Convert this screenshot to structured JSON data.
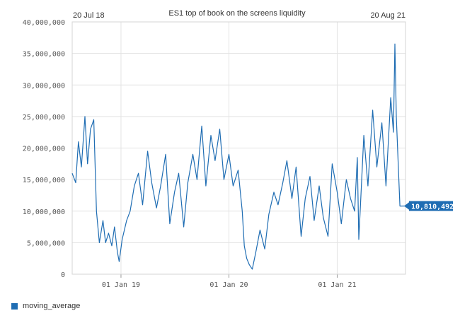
{
  "chart_data": {
    "type": "line",
    "title": "ES1 top of book on the screens liquidity",
    "start_label": "20 Jul 18",
    "end_label": "20 Aug 21",
    "xlabel": "",
    "ylabel": "",
    "x_tick_labels": [
      "01 Jan 19",
      "01 Jan 20",
      "01 Jan 21"
    ],
    "y_tick_labels": [
      "0",
      "5,000,000",
      "10,000,000",
      "15,000,000",
      "20,000,000",
      "25,000,000",
      "30,000,000",
      "35,000,000",
      "40,000,000"
    ],
    "xlim": [
      "2018-07-20",
      "2021-08-20"
    ],
    "ylim": [
      0,
      40000000
    ],
    "grid": true,
    "legend_position": "bottom-left",
    "last_value_label": "10,810,492",
    "series": [
      {
        "name": "moving_average",
        "color": "#1f6db3",
        "x": [
          "2018-07-20",
          "2018-08-01",
          "2018-08-10",
          "2018-08-20",
          "2018-09-01",
          "2018-09-10",
          "2018-09-20",
          "2018-10-01",
          "2018-10-10",
          "2018-10-20",
          "2018-11-01",
          "2018-11-10",
          "2018-11-20",
          "2018-12-01",
          "2018-12-10",
          "2018-12-20",
          "2018-12-26",
          "2019-01-05",
          "2019-01-20",
          "2019-02-01",
          "2019-02-15",
          "2019-03-01",
          "2019-03-15",
          "2019-04-01",
          "2019-04-15",
          "2019-05-01",
          "2019-05-15",
          "2019-06-01",
          "2019-06-15",
          "2019-07-01",
          "2019-07-15",
          "2019-08-01",
          "2019-08-15",
          "2019-09-01",
          "2019-09-15",
          "2019-10-01",
          "2019-10-15",
          "2019-11-01",
          "2019-11-15",
          "2019-12-01",
          "2019-12-15",
          "2020-01-01",
          "2020-01-15",
          "2020-02-01",
          "2020-02-15",
          "2020-02-22",
          "2020-03-01",
          "2020-03-10",
          "2020-03-20",
          "2020-04-01",
          "2020-04-15",
          "2020-05-01",
          "2020-05-15",
          "2020-06-01",
          "2020-06-15",
          "2020-07-01",
          "2020-07-15",
          "2020-08-01",
          "2020-08-15",
          "2020-09-01",
          "2020-09-15",
          "2020-10-01",
          "2020-10-15",
          "2020-11-01",
          "2020-11-15",
          "2020-12-01",
          "2020-12-15",
          "2021-01-01",
          "2021-01-15",
          "2021-02-01",
          "2021-02-15",
          "2021-03-01",
          "2021-03-10",
          "2021-03-15",
          "2021-04-01",
          "2021-04-15",
          "2021-05-01",
          "2021-05-15",
          "2021-06-01",
          "2021-06-15",
          "2021-07-01",
          "2021-07-10",
          "2021-07-15",
          "2021-07-20",
          "2021-08-01",
          "2021-08-20"
        ],
        "values": [
          16000000,
          14500000,
          21000000,
          17000000,
          25000000,
          17500000,
          23000000,
          24500000,
          10000000,
          5000000,
          8500000,
          5000000,
          6500000,
          4500000,
          7500000,
          3500000,
          2000000,
          5500000,
          8500000,
          10000000,
          14000000,
          16000000,
          11000000,
          19500000,
          14500000,
          10500000,
          14000000,
          19000000,
          8000000,
          13000000,
          16000000,
          7500000,
          14500000,
          19000000,
          15000000,
          23500000,
          14000000,
          22000000,
          18000000,
          23000000,
          15000000,
          19000000,
          14000000,
          16500000,
          10000000,
          4500000,
          2500000,
          1500000,
          800000,
          3500000,
          7000000,
          4000000,
          9500000,
          13000000,
          11000000,
          14500000,
          18000000,
          12000000,
          17000000,
          6000000,
          12000000,
          15500000,
          8500000,
          14000000,
          9000000,
          6000000,
          17500000,
          13000000,
          8000000,
          15000000,
          12000000,
          10000000,
          18500000,
          5500000,
          22000000,
          14000000,
          26000000,
          17000000,
          24000000,
          14000000,
          28000000,
          22500000,
          36500000,
          25000000,
          10800000,
          10810492
        ]
      }
    ]
  }
}
